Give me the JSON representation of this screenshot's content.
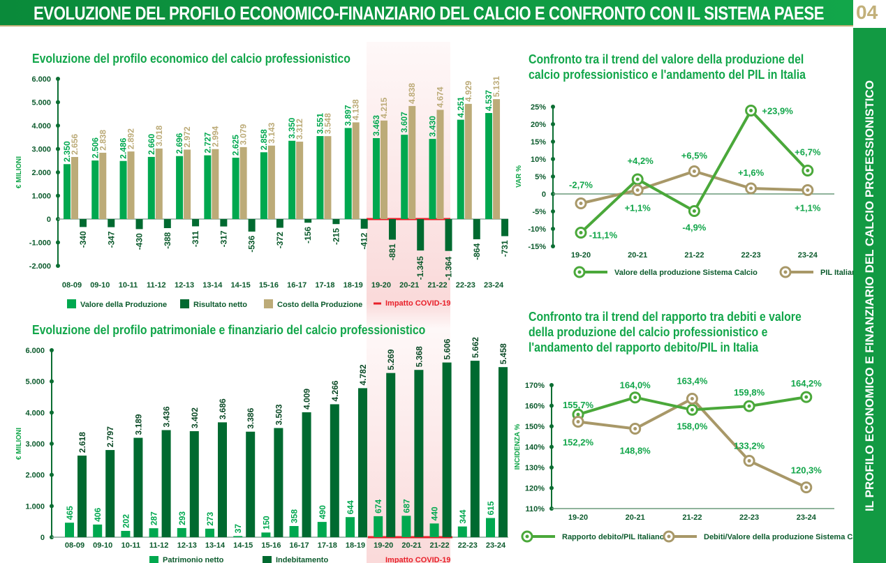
{
  "header": {
    "title": "EVOLUZIONE DEL PROFILO ECONOMICO-FINANZIARIO DEL CALCIO E CONFRONTO CON IL SISTEMA PAESE",
    "page_number": "04"
  },
  "sidebar": {
    "label": "IL PROFILO ECONOMICO E FINANZIARIO DEL CALCIO PROFESSIONISTICO"
  },
  "colors": {
    "green": "#00a84f",
    "dark_green": "#006a30",
    "tan": "#bcab78",
    "covid_red": "#e8202a"
  },
  "chart_data": [
    {
      "type": "bar",
      "title": "Evoluzione del profilo economico del calcio professionistico",
      "ylabel": "€ MILIONI",
      "ylim": [
        -2000,
        6000
      ],
      "yticks": [
        "6.000",
        "5.000",
        "4.000",
        "3.000",
        "2.000",
        "1.000",
        "0",
        "-1.000",
        "-2.000"
      ],
      "categories": [
        "08-09",
        "09-10",
        "10-11",
        "11-12",
        "12-13",
        "13-14",
        "14-15",
        "15-16",
        "16-17",
        "17-18",
        "18-19",
        "19-20",
        "20-21",
        "21-22",
        "22-23",
        "23-24"
      ],
      "series": [
        {
          "name": "Valore della Produzione",
          "color": "#00a84f",
          "values": [
            2350,
            2506,
            2486,
            2660,
            2696,
            2727,
            2625,
            2858,
            3350,
            3551,
            3897,
            3463,
            3607,
            3430,
            4251,
            4537
          ],
          "labels": [
            "2.350",
            "2.506",
            "2.486",
            "2.660",
            "2.696",
            "2.727",
            "2.625",
            "2.858",
            "3.350",
            "3.551",
            "3.897",
            "3.463",
            "3.607",
            "3.430",
            "4.251",
            "4.537"
          ]
        },
        {
          "name": "Costo della Produzione",
          "color": "#bcab78",
          "values": [
            2656,
            2838,
            2892,
            3018,
            2972,
            2994,
            3079,
            3143,
            3312,
            3548,
            4138,
            4215,
            4838,
            4674,
            4929,
            5131
          ],
          "labels": [
            "2.656",
            "2.838",
            "2.892",
            "3.018",
            "2.972",
            "2.994",
            "3.079",
            "3.143",
            "3.312",
            "3.548",
            "4.138",
            "4.215",
            "4.838",
            "4.674",
            "4.929",
            "5.131"
          ]
        },
        {
          "name": "Risultato netto",
          "color": "#006a30",
          "values": [
            -340,
            -347,
            -430,
            -388,
            -311,
            -317,
            -536,
            -372,
            -156,
            -215,
            -412,
            -881,
            -1345,
            -1364,
            -864,
            -731
          ],
          "labels": [
            "-340",
            "-347",
            "-430",
            "-388",
            "-311",
            "-317",
            "-536",
            "-372",
            "-156",
            "-215",
            "-412",
            "-881",
            "-1.345",
            "-1.364",
            "-864",
            "-731"
          ]
        }
      ],
      "legend": [
        "Valore della Produzione",
        "Risultato netto",
        "Costo della Produzione"
      ],
      "annotation": "Impatto COVID-19",
      "highlight": [
        "19-20",
        "20-21",
        "21-22"
      ]
    },
    {
      "type": "bar",
      "title": "Evoluzione del profilo patrimoniale e finanziario del calcio professionistico",
      "ylabel": "€ MILIONI",
      "ylim": [
        0,
        6000
      ],
      "yticks": [
        "6.000",
        "5.000",
        "4.000",
        "3.000",
        "2.000",
        "1.000",
        "0"
      ],
      "categories": [
        "08-09",
        "09-10",
        "10-11",
        "11-12",
        "12-13",
        "13-14",
        "14-15",
        "15-16",
        "16-17",
        "17-18",
        "18-19",
        "19-20",
        "20-21",
        "21-22",
        "22-23",
        "23-24"
      ],
      "series": [
        {
          "name": "Patrimonio netto",
          "color": "#00a84f",
          "values": [
            465,
            406,
            202,
            287,
            293,
            273,
            37,
            150,
            358,
            490,
            644,
            674,
            687,
            440,
            344,
            615
          ],
          "labels": [
            "465",
            "406",
            "202",
            "287",
            "293",
            "273",
            "37",
            "150",
            "358",
            "490",
            "644",
            "674",
            "687",
            "440",
            "344",
            "615"
          ]
        },
        {
          "name": "Indebitamento",
          "color": "#006a30",
          "values": [
            2618,
            2797,
            3189,
            3436,
            3402,
            3686,
            3386,
            3503,
            4009,
            4266,
            4782,
            5269,
            5368,
            5606,
            5662,
            5458
          ],
          "labels": [
            "2.618",
            "2.797",
            "3.189",
            "3.436",
            "3.402",
            "3.686",
            "3.386",
            "3.503",
            "4.009",
            "4.266",
            "4.782",
            "5.269",
            "5.368",
            "5.606",
            "5.662",
            "5.458"
          ]
        }
      ],
      "annotation": "Impatto COVID-19"
    },
    {
      "type": "line",
      "title": "Confronto tra il trend del valore della produzione del calcio professionistico e l'andamento del PIL in Italia",
      "ylabel": "VAR %",
      "ylim": [
        -15,
        25
      ],
      "yticks": [
        "25%",
        "20%",
        "15%",
        "10%",
        "5%",
        "0",
        "-5%",
        "-10%",
        "-15%"
      ],
      "categories": [
        "19-20",
        "20-21",
        "21-22",
        "22-23",
        "23-24"
      ],
      "series": [
        {
          "name": "Valore della produzione Sistema Calcio",
          "color": "#4aa83a",
          "values": [
            -11.1,
            4.2,
            -4.9,
            23.9,
            6.7
          ],
          "labels": [
            "-11,1%",
            "+4,2%",
            "-4,9%",
            "+23,9%",
            "+6,7%"
          ]
        },
        {
          "name": "PIL Italiano",
          "color": "#a89868",
          "values": [
            -2.7,
            1.1,
            6.5,
            1.6,
            1.1
          ],
          "labels": [
            "-2,7%",
            "+1,1%",
            "+6,5%",
            "+1,6%",
            "+1,1%"
          ]
        }
      ]
    },
    {
      "type": "line",
      "title": "Confronto tra il trend del rapporto tra debiti e valore della produzione del calcio professionistico e l'andamento del rapporto debito/PIL in Italia",
      "ylabel": "INCIDENZA %",
      "ylim": [
        110,
        170
      ],
      "yticks": [
        "170%",
        "160%",
        "150%",
        "140%",
        "130%",
        "120%",
        "110%"
      ],
      "categories": [
        "19-20",
        "20-21",
        "21-22",
        "22-23",
        "23-24"
      ],
      "series": [
        {
          "name": "Rapporto debito/PIL Italiano",
          "color": "#4aa83a",
          "values": [
            155.7,
            164.0,
            158.0,
            159.8,
            164.2
          ],
          "labels": [
            "155,7%",
            "164,0%",
            "158,0%",
            "159,8%",
            "164,2%"
          ]
        },
        {
          "name": "Debiti/Valore della produzione Sistema Calcio",
          "color": "#a89868",
          "values": [
            152.2,
            148.8,
            163.4,
            133.2,
            120.3
          ],
          "labels": [
            "152,2%",
            "148,8%",
            "163,4%",
            "133,2%",
            "120,3%"
          ]
        }
      ]
    }
  ]
}
